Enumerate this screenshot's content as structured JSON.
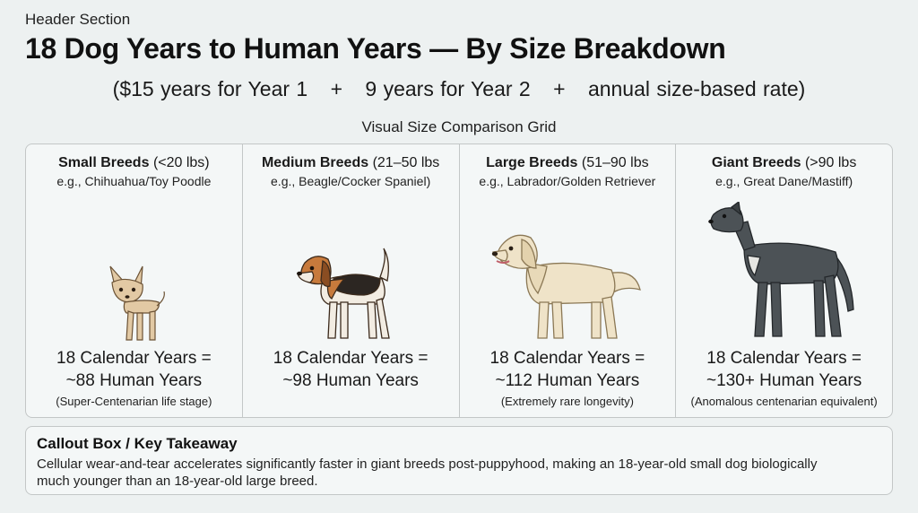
{
  "header": {
    "section_label": "Header Section",
    "title": "18 Dog Years to Human Years — By Size Breakdown",
    "formula": {
      "part1": "($15 years for Year 1",
      "op1": "+",
      "part2": "9 years for Year 2",
      "op2": "+",
      "part3": "annual size-based rate)"
    }
  },
  "grid": {
    "title": "Visual Size Comparison Grid",
    "cells": [
      {
        "name": "Small Breeds",
        "range": "(<20 lbs)",
        "example": "e.g., Chihuahua/Toy Poodle",
        "stat_line1": "18 Calendar Years =",
        "stat_line2": "~88 Human Years",
        "note": "(Super-Centenarian life stage)",
        "dog_icon": "chihuahua-icon",
        "fur_color": "#e2c9a4"
      },
      {
        "name": "Medium Breeds",
        "range": "(21–50 lbs",
        "example": "e.g., Beagle/Cocker Spaniel)",
        "stat_line1": "18 Calendar Years =",
        "stat_line2": "~98 Human Years",
        "note": "",
        "dog_icon": "beagle-icon",
        "fur_color": "#c77a3c"
      },
      {
        "name": "Large Breeds",
        "range": "(51–90 lbs",
        "example": "e.g., Labrador/Golden Retriever",
        "stat_line1": "18 Calendar Years =",
        "stat_line2": "~112 Human Years",
        "note": "(Extremely rare longevity)",
        "dog_icon": "golden-retriever-icon",
        "fur_color": "#efe3c8"
      },
      {
        "name": "Giant Breeds",
        "range": "(>90 lbs",
        "example": "e.g., Great Dane/Mastiff)",
        "stat_line1": "18 Calendar Years =",
        "stat_line2": "~130+ Human Years",
        "note": "(Anomalous centenarian equivalent)",
        "dog_icon": "great-dane-icon",
        "fur_color": "#4c5256"
      }
    ]
  },
  "callout": {
    "title": "Callout Box / Key Takeaway",
    "body": "Cellular wear-and-tear accelerates significantly faster in giant breeds post-puppyhood, making an 18-year-old small dog biologically much younger than an 18-year-old large breed."
  }
}
